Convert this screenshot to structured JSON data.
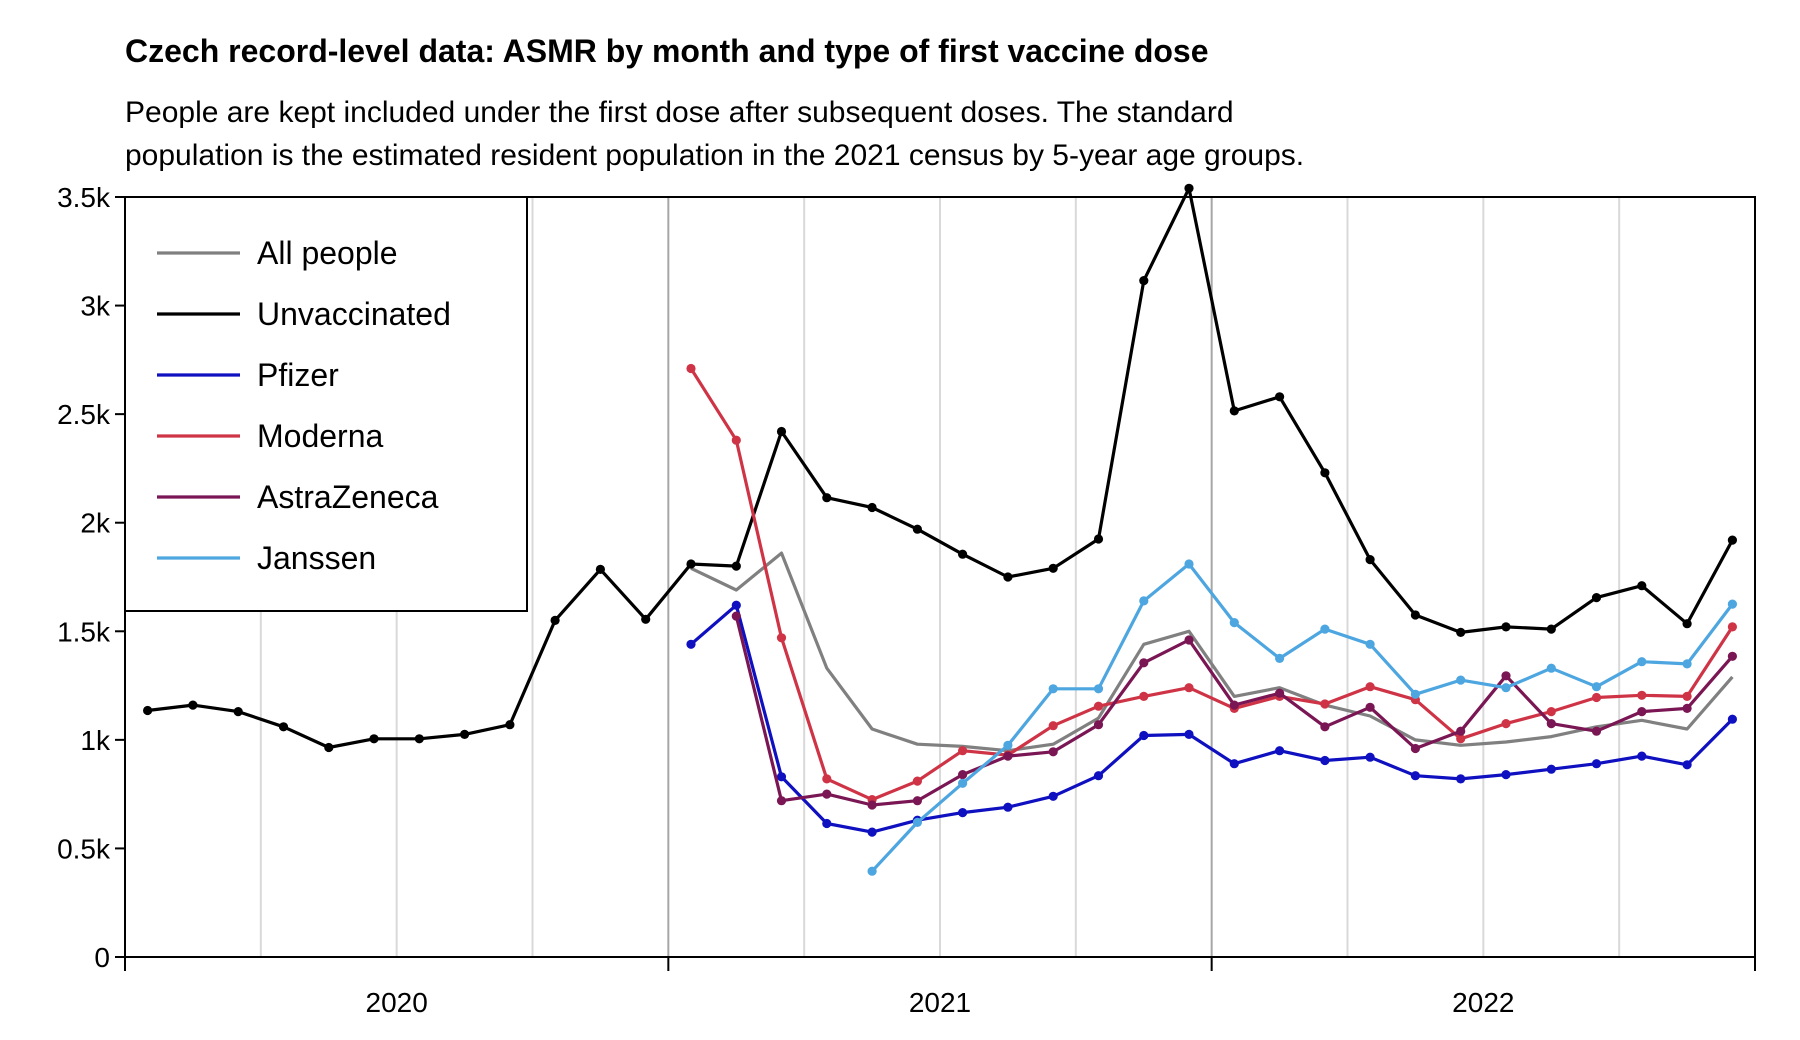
{
  "chart_data": {
    "type": "line",
    "title": "Czech record-level data: ASMR by month and type of first vaccine dose",
    "subtitle_lines": [
      "People are kept included under the first dose after subsequent doses. The standard",
      "population is the estimated resident population in the 2021 census by 5-year age groups."
    ],
    "xlabel": "",
    "ylabel": "",
    "x_months": [
      "2020-01",
      "2020-02",
      "2020-03",
      "2020-04",
      "2020-05",
      "2020-06",
      "2020-07",
      "2020-08",
      "2020-09",
      "2020-10",
      "2020-11",
      "2020-12",
      "2021-01",
      "2021-02",
      "2021-03",
      "2021-04",
      "2021-05",
      "2021-06",
      "2021-07",
      "2021-08",
      "2021-09",
      "2021-10",
      "2021-11",
      "2021-12",
      "2022-01",
      "2022-02",
      "2022-03",
      "2022-04",
      "2022-05",
      "2022-06",
      "2022-07",
      "2022-08",
      "2022-09",
      "2022-10",
      "2022-11",
      "2022-12"
    ],
    "x_tick_labels": [
      "2020",
      "2021",
      "2022"
    ],
    "ylim": [
      0,
      3500
    ],
    "y_ticks": [
      {
        "value": 0,
        "label": "0"
      },
      {
        "value": 500,
        "label": "0.5k"
      },
      {
        "value": 1000,
        "label": "1k"
      },
      {
        "value": 1500,
        "label": "1.5k"
      },
      {
        "value": 2000,
        "label": "2k"
      },
      {
        "value": 2500,
        "label": "2.5k"
      },
      {
        "value": 3000,
        "label": "3k"
      },
      {
        "value": 3500,
        "label": "3.5k"
      }
    ],
    "grid": "vertical",
    "legend_position": "top-left",
    "series": [
      {
        "name": "All people",
        "color": "#808080",
        "markers": false,
        "values": [
          null,
          null,
          null,
          null,
          null,
          null,
          null,
          null,
          null,
          null,
          null,
          null,
          1790,
          1690,
          1860,
          1330,
          1050,
          980,
          970,
          950,
          980,
          1100,
          1440,
          1500,
          1200,
          1240,
          1160,
          1110,
          1000,
          975,
          990,
          1015,
          1060,
          1090,
          1050,
          1290
        ]
      },
      {
        "name": "Unvaccinated",
        "color": "#000000",
        "markers": true,
        "values": [
          1135,
          1160,
          1130,
          1060,
          965,
          1005,
          1005,
          1025,
          1070,
          1550,
          1785,
          1555,
          1810,
          1800,
          2420,
          2115,
          2070,
          1970,
          1855,
          1750,
          1790,
          1925,
          3115,
          3540,
          2515,
          2580,
          2230,
          1830,
          1575,
          1495,
          1520,
          1510,
          1655,
          1710,
          1535,
          1920
        ]
      },
      {
        "name": "Pfizer",
        "color": "#0f10c0",
        "markers": true,
        "values": [
          null,
          null,
          null,
          null,
          null,
          null,
          null,
          null,
          null,
          null,
          null,
          null,
          1440,
          1620,
          830,
          615,
          575,
          630,
          665,
          690,
          740,
          835,
          1020,
          1025,
          890,
          950,
          905,
          920,
          835,
          820,
          840,
          865,
          890,
          925,
          885,
          1095
        ]
      },
      {
        "name": "Moderna",
        "color": "#cf3446",
        "markers": true,
        "values": [
          null,
          null,
          null,
          null,
          null,
          null,
          null,
          null,
          null,
          null,
          null,
          null,
          2710,
          2380,
          1470,
          820,
          725,
          810,
          950,
          930,
          1065,
          1155,
          1200,
          1240,
          1145,
          1200,
          1165,
          1245,
          1185,
          1005,
          1075,
          1130,
          1195,
          1205,
          1200,
          1520
        ]
      },
      {
        "name": "AstraZeneca",
        "color": "#7a1654",
        "markers": true,
        "values": [
          null,
          null,
          null,
          null,
          null,
          null,
          null,
          null,
          null,
          null,
          null,
          null,
          null,
          1570,
          720,
          750,
          700,
          720,
          840,
          925,
          945,
          1070,
          1355,
          1460,
          1160,
          1215,
          1060,
          1150,
          960,
          1040,
          1295,
          1075,
          1040,
          1130,
          1145,
          1385
        ]
      },
      {
        "name": "Janssen",
        "color": "#4da6e0",
        "markers": true,
        "values": [
          null,
          null,
          null,
          null,
          null,
          null,
          null,
          null,
          null,
          null,
          null,
          null,
          null,
          null,
          null,
          null,
          395,
          620,
          800,
          975,
          1235,
          1235,
          1640,
          1810,
          1540,
          1375,
          1510,
          1440,
          1210,
          1275,
          1240,
          1330,
          1245,
          1360,
          1350,
          1625
        ]
      }
    ]
  }
}
